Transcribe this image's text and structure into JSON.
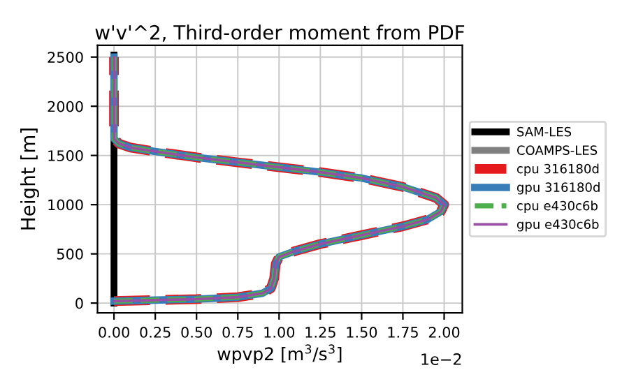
{
  "chart_data": {
    "type": "line",
    "title": "w'v'^2, Third-order moment from PDF",
    "xlabel": "wpvp2 [m$^{3}$/s$^{3}$]",
    "ylabel": "Height [m]",
    "xlim": [
      -0.1,
      2.11
    ],
    "ylim": [
      -100,
      2620
    ],
    "xticks": [
      {
        "value": 0,
        "label": "0.00"
      },
      0.25,
      {
        "value": 0.5,
        "label": "0.50"
      },
      0.75,
      {
        "value": 1,
        "label": "1.00"
      },
      1.25,
      {
        "value": 1.5,
        "label": "1.50"
      },
      1.75,
      {
        "value": 2,
        "label": "2.00"
      }
    ],
    "yticks": [
      0,
      500,
      1000,
      1500,
      2000,
      2500
    ],
    "annotations": [
      "1e−2"
    ],
    "grid": true,
    "legend": "right",
    "series": [
      {
        "name": "SAM-LES",
        "color": "#000000",
        "line_style": "solid",
        "x": [
          0,
          0
        ],
        "values": [
          0,
          2520
        ]
      },
      {
        "name": "COAMPS-LES",
        "color": "#808080",
        "line_style": "solid",
        "x": [
          null,
          null
        ],
        "values": [
          null,
          null
        ]
      },
      {
        "name": "cpu 316180d",
        "color": "#e41a1c",
        "line_style": "dashed",
        "x": [
          0,
          0.25,
          0.5,
          0.75,
          0.9,
          0.95,
          0.97,
          0.98,
          1.0,
          1.1,
          1.25,
          1.5,
          1.75,
          1.9,
          1.98,
          2.0,
          1.95,
          1.75,
          1.5,
          1.25,
          1.0,
          0.75,
          0.5,
          0.25,
          0.1,
          0.03,
          0,
          0,
          0
        ],
        "values": [
          20,
          30,
          40,
          60,
          100,
          150,
          250,
          400,
          470,
          530,
          600,
          690,
          780,
          850,
          930,
          1000,
          1070,
          1180,
          1270,
          1330,
          1380,
          1430,
          1480,
          1540,
          1580,
          1620,
          1670,
          2000,
          2500
        ]
      },
      {
        "name": "gpu 316180d",
        "color": "#377eb8",
        "line_style": "solid",
        "x": [
          0,
          0.25,
          0.5,
          0.75,
          0.9,
          0.95,
          0.97,
          0.98,
          1.0,
          1.1,
          1.25,
          1.5,
          1.75,
          1.9,
          1.98,
          2.0,
          1.95,
          1.75,
          1.5,
          1.25,
          1.0,
          0.75,
          0.5,
          0.25,
          0.1,
          0.03,
          0,
          0,
          0
        ],
        "values": [
          20,
          30,
          40,
          60,
          100,
          150,
          250,
          400,
          470,
          530,
          600,
          690,
          780,
          850,
          930,
          1000,
          1070,
          1180,
          1270,
          1330,
          1380,
          1430,
          1480,
          1540,
          1580,
          1620,
          1670,
          2000,
          2500
        ]
      },
      {
        "name": "cpu e430c6b",
        "color": "#4daf4a",
        "line_style": "dashed",
        "x": [
          0,
          0.25,
          0.5,
          0.75,
          0.9,
          0.95,
          0.97,
          0.98,
          1.0,
          1.1,
          1.25,
          1.5,
          1.75,
          1.9,
          1.98,
          2.0,
          1.95,
          1.75,
          1.5,
          1.25,
          1.0,
          0.75,
          0.5,
          0.25,
          0.1,
          0.03,
          0,
          0,
          0
        ],
        "values": [
          20,
          30,
          40,
          60,
          100,
          150,
          250,
          400,
          470,
          530,
          600,
          690,
          780,
          850,
          930,
          1000,
          1070,
          1180,
          1270,
          1330,
          1380,
          1430,
          1480,
          1540,
          1580,
          1620,
          1670,
          2000,
          2500
        ]
      },
      {
        "name": "gpu e430c6b",
        "color": "#984ea3",
        "line_style": "solid",
        "x": [
          0,
          0.25,
          0.5,
          0.75,
          0.9,
          0.95,
          0.97,
          0.98,
          1.0,
          1.1,
          1.25,
          1.5,
          1.75,
          1.9,
          1.98,
          2.0,
          1.95,
          1.75,
          1.5,
          1.25,
          1.0,
          0.75,
          0.5,
          0.25,
          0.1,
          0.03,
          0,
          0,
          0
        ],
        "values": [
          20,
          30,
          40,
          60,
          100,
          150,
          250,
          400,
          470,
          530,
          600,
          690,
          780,
          850,
          930,
          1000,
          1070,
          1180,
          1270,
          1330,
          1380,
          1430,
          1480,
          1540,
          1580,
          1620,
          1670,
          2000,
          2500
        ]
      }
    ]
  }
}
